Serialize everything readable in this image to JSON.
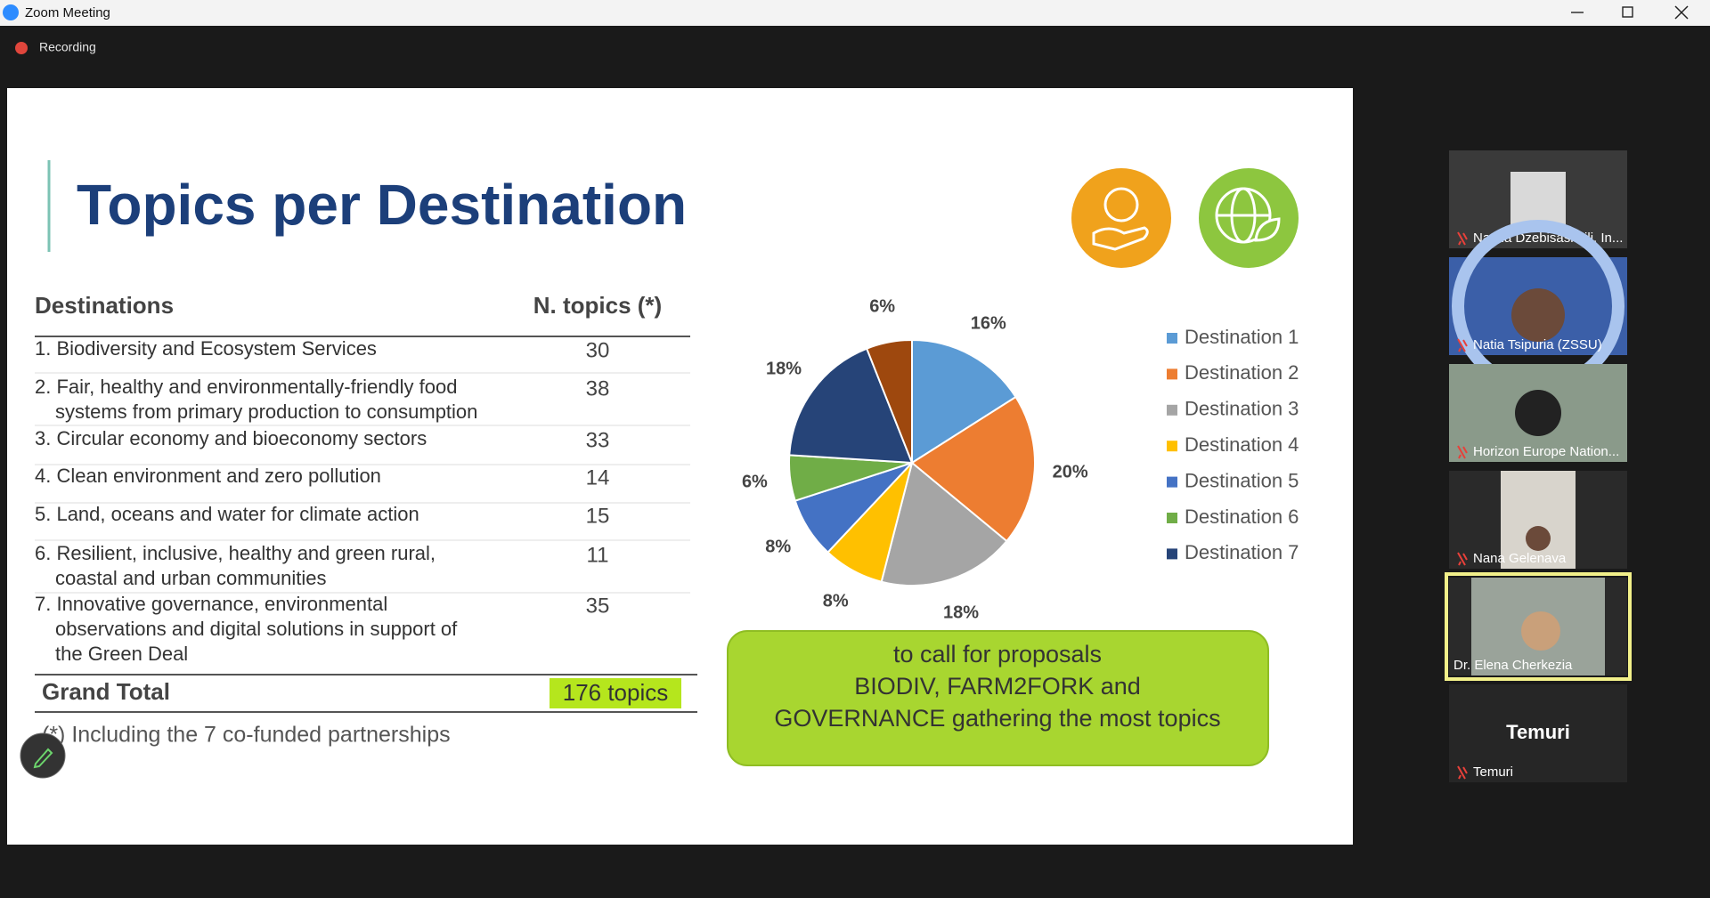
{
  "window": {
    "title": "Zoom Meeting",
    "recording": "Recording"
  },
  "slide": {
    "title": "Topics per Destination",
    "table": {
      "header": [
        "Destinations",
        "N. topics (*)"
      ],
      "rows": [
        {
          "lines": [
            "1. Biodiversity and Ecosystem Services"
          ],
          "topics": 30
        },
        {
          "lines": [
            "2. Fair, healthy and environmentally-friendly food",
            "systems from primary production to consumption"
          ],
          "topics": 38
        },
        {
          "lines": [
            "3. Circular economy and bioeconomy sectors"
          ],
          "topics": 33
        },
        {
          "lines": [
            "4. Clean environment and zero pollution"
          ],
          "topics": 14
        },
        {
          "lines": [
            "5. Land, oceans and water for climate action"
          ],
          "topics": 15
        },
        {
          "lines": [
            "6. Resilient, inclusive, healthy and green rural,",
            "coastal and urban communities"
          ],
          "topics": 11
        },
        {
          "lines": [
            "7. Innovative governance, environmental",
            "observations and digital solutions in support of",
            "the Green Deal"
          ],
          "topics": 35
        }
      ],
      "total": {
        "label": "Grand Total",
        "value": "176 topics"
      }
    },
    "footnote": "(*) Including the 7 co-funded partnerships",
    "callout": [
      "to call for proposals",
      "BIODIV, FARM2FORK and",
      "GOVERNANCE gathering the most topics"
    ]
  },
  "chart_data": {
    "type": "pie",
    "categories": [
      "Destination 1",
      "Destination 2",
      "Destination 3",
      "Destination 4",
      "Destination 5",
      "Destination 6",
      "Destination 7",
      null
    ],
    "values": [
      16,
      20,
      18,
      8,
      8,
      6,
      18,
      6
    ],
    "value_labels": [
      "16%",
      "20%",
      "18%",
      "8%",
      "8%",
      "6%",
      "18%",
      "6%"
    ],
    "colors": [
      "#5b9bd5",
      "#ed7d31",
      "#a5a5a5",
      "#ffc000",
      "#4472c4",
      "#70ad47",
      "#264478",
      "#9e480e"
    ],
    "legend": "right"
  },
  "participants": [
    {
      "name": "Natela Dzebisashvili, In..."
    },
    {
      "name": "Natia Tsipuria (ZSSU)"
    },
    {
      "name": "Horizon Europe Nation..."
    },
    {
      "name": "Nana Gelenava"
    },
    {
      "name": "Dr. Elena Cherkezia"
    },
    {
      "name": "Temuri",
      "display_name": "Temuri"
    }
  ]
}
